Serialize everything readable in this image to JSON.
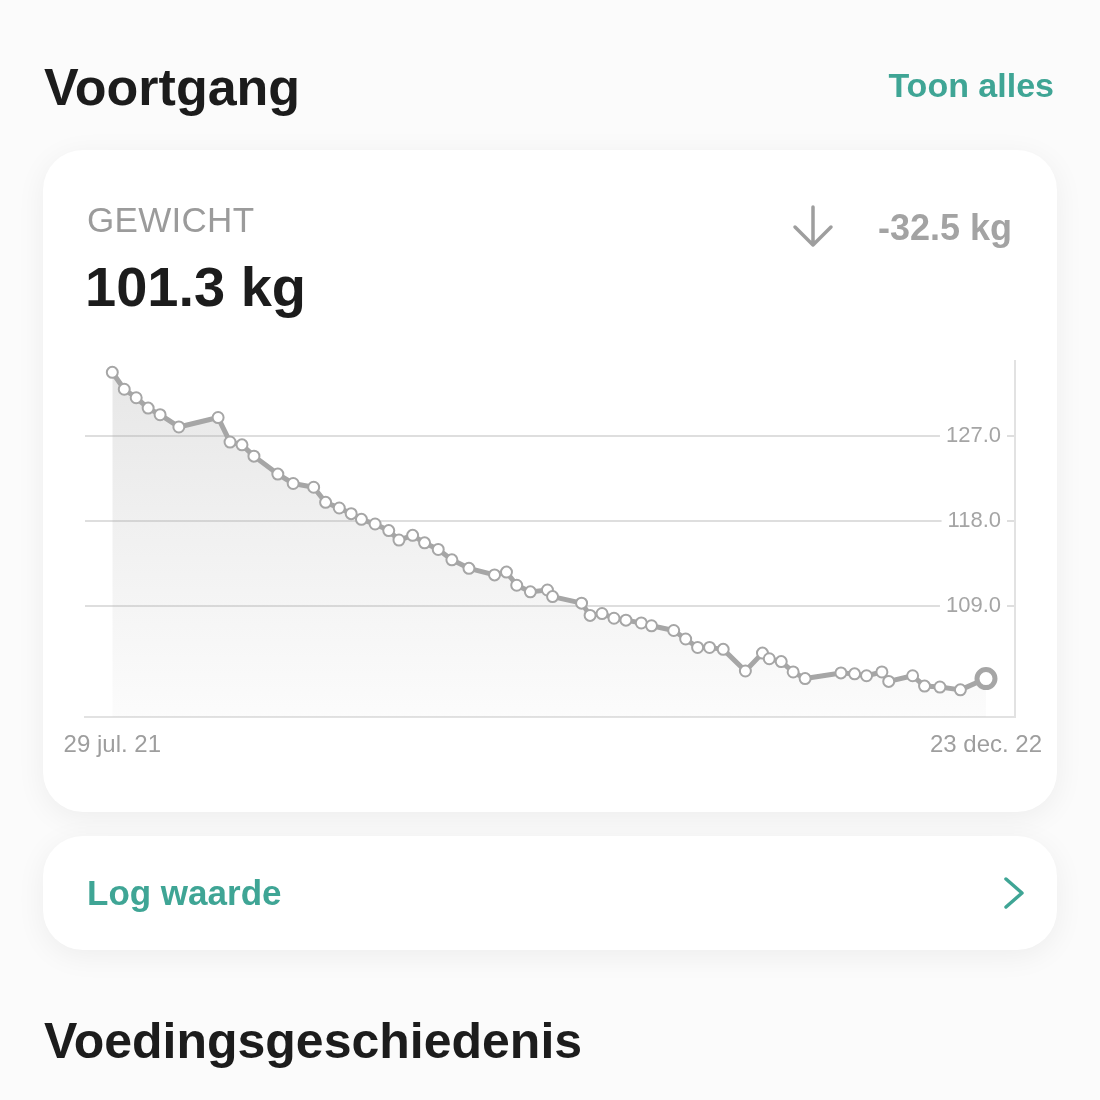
{
  "chart_data": {
    "type": "area",
    "title": "GEWICHT",
    "subtitle": "101.3 kg",
    "annotations": [
      "Voortgang",
      "Toon alles",
      "-32.5 kg",
      "Log waarde",
      "Voedingsgeschiedenis"
    ],
    "x": [
      "2021-07-29",
      "2021-08-05",
      "2021-08-12",
      "2021-08-19",
      "2021-08-26",
      "2021-09-06",
      "2021-09-29",
      "2021-10-06",
      "2021-10-13",
      "2021-10-20",
      "2021-11-03",
      "2021-11-12",
      "2021-11-24",
      "2021-12-01",
      "2021-12-09",
      "2021-12-16",
      "2021-12-22",
      "2021-12-30",
      "2022-01-07",
      "2022-01-13",
      "2022-01-21",
      "2022-01-28",
      "2022-02-05",
      "2022-02-13",
      "2022-02-23",
      "2022-03-10",
      "2022-03-17",
      "2022-03-23",
      "2022-03-31",
      "2022-04-10",
      "2022-04-13",
      "2022-04-30",
      "2022-05-05",
      "2022-05-12",
      "2022-05-19",
      "2022-05-26",
      "2022-06-04",
      "2022-06-10",
      "2022-06-23",
      "2022-06-30",
      "2022-07-07",
      "2022-07-14",
      "2022-07-22",
      "2022-08-04",
      "2022-08-14",
      "2022-08-18",
      "2022-08-25",
      "2022-09-01",
      "2022-09-08",
      "2022-09-29",
      "2022-10-07",
      "2022-10-14",
      "2022-10-23",
      "2022-10-27",
      "2022-11-10",
      "2022-11-17",
      "2022-11-26",
      "2022-12-08",
      "2022-12-23"
    ],
    "series": [
      {
        "color": "#a6a6a6",
        "values": [
          133.8,
          132.0,
          131.1,
          130.0,
          129.3,
          128.0,
          129.0,
          126.4,
          126.1,
          124.9,
          123.0,
          122.0,
          121.6,
          120.0,
          119.4,
          118.8,
          118.2,
          117.7,
          117.0,
          116.0,
          116.5,
          115.7,
          115.0,
          113.9,
          113.0,
          112.3,
          112.6,
          111.2,
          110.5,
          110.7,
          110.0,
          109.3,
          108.0,
          108.2,
          107.7,
          107.5,
          107.2,
          106.9,
          106.4,
          105.5,
          104.6,
          104.6,
          104.4,
          102.1,
          104.0,
          103.4,
          103.1,
          102.0,
          101.3,
          101.9,
          101.8,
          101.6,
          102.0,
          101.0,
          101.6,
          100.5,
          100.4,
          100.1,
          101.3
        ]
      }
    ],
    "xlim": [
      "2021-07-13",
      "2023-01-09"
    ],
    "xticks": [
      {
        "value": "2021-07-29",
        "label": "29 jul. 21"
      },
      {
        "value": "2022-12-23",
        "label": "23 dec. 22"
      }
    ],
    "ylim": [
      97.2,
      135
    ],
    "yticks": [
      {
        "value": 109,
        "label": "109.0"
      },
      {
        "value": 118,
        "label": "118.0"
      },
      {
        "value": 127,
        "label": "127.0"
      }
    ],
    "grid": "y",
    "marker": "circle",
    "line_style": "solid"
  }
}
